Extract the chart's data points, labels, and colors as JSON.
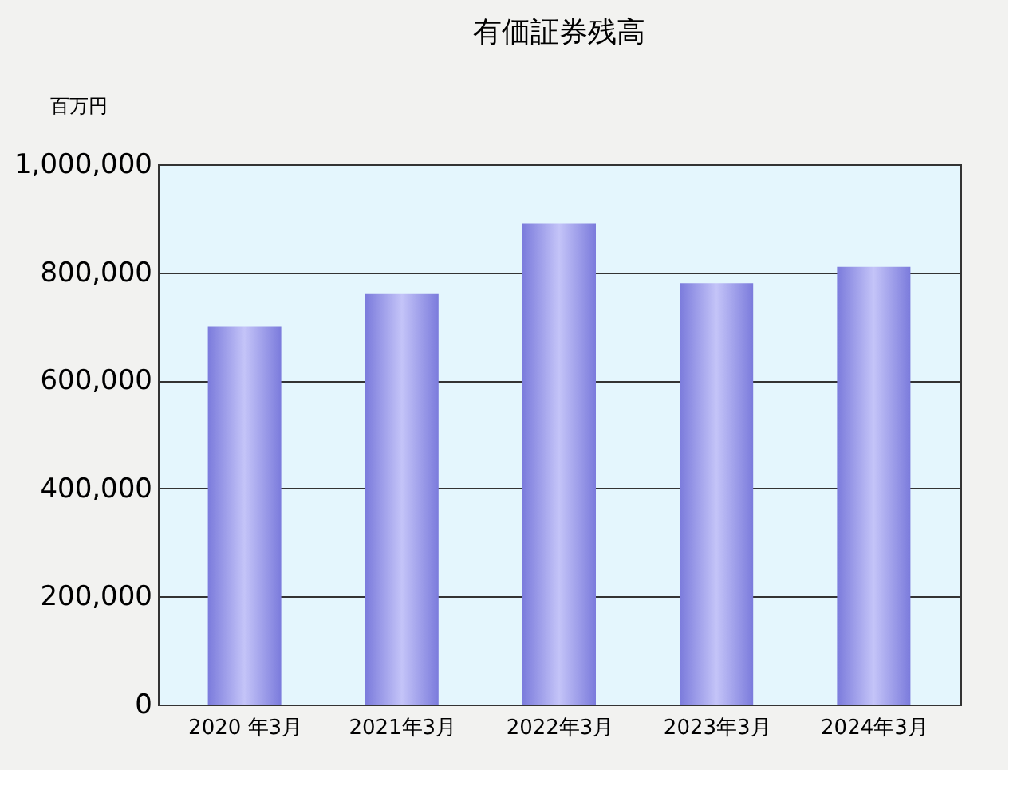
{
  "chart_data": {
    "type": "bar",
    "title": "有価証券残高",
    "ylabel": "百万円",
    "categories": [
      "2020 年3月",
      "2021年3月",
      "2022年3月",
      "2023年3月",
      "2024年3月"
    ],
    "series": [
      {
        "color": "#7b7bdc",
        "values": [
          700000,
          760000,
          890000,
          780000,
          810000
        ]
      }
    ],
    "ylim": [
      0,
      1000000
    ],
    "yticks": [
      {
        "value": 0,
        "label": "0"
      },
      {
        "value": 200000,
        "label": "200,000"
      },
      {
        "value": 400000,
        "label": "400,000"
      },
      {
        "value": 600000,
        "label": "600,000"
      },
      {
        "value": 800000,
        "label": "800,000"
      },
      {
        "value": 1000000,
        "label": "1,000,000"
      }
    ],
    "grid": "y"
  }
}
